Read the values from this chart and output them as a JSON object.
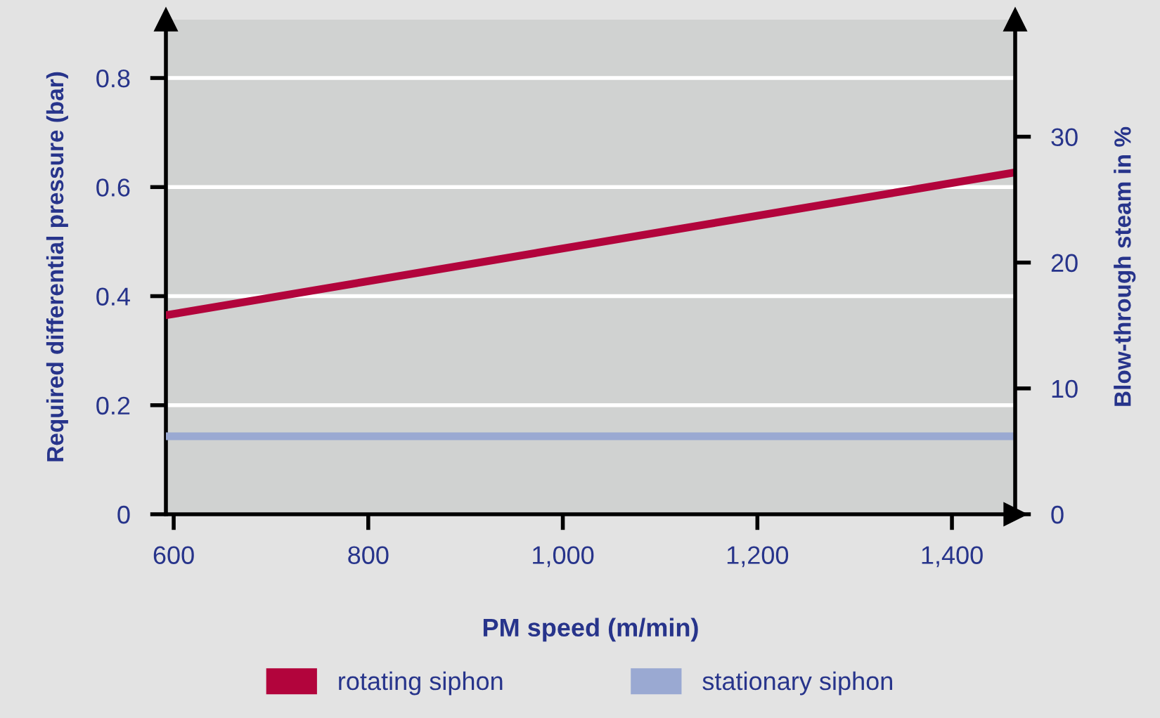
{
  "chart_data": {
    "type": "line",
    "xlabel": "PM speed (m/min)",
    "ylabel": "Required differential pressure (bar)",
    "y2label": "Blow-through steam in %",
    "x": [
      592,
      1465
    ],
    "series": [
      {
        "name": "rotating siphon",
        "color": "#b2043c",
        "values": [
          0.365,
          0.627
        ]
      },
      {
        "name": "stationary siphon",
        "color": "#9aa9d2",
        "values": [
          0.143,
          0.143
        ]
      }
    ],
    "xlim": [
      592,
      1465
    ],
    "xticks": [
      600,
      800,
      {
        "value": 1000,
        "label": "1,000"
      },
      {
        "value": 1200,
        "label": "1,200"
      },
      {
        "value": 1400,
        "label": "1,400"
      }
    ],
    "ylim": [
      0,
      0.907
    ],
    "yticks": [
      0,
      0.2,
      0.4,
      0.6,
      0.8
    ],
    "y2lim": [
      0,
      39.3
    ],
    "y2ticks": [
      0,
      10,
      20,
      30
    ],
    "grid": "y",
    "legend": "bottom",
    "marker": "none",
    "line_style": "solid"
  }
}
